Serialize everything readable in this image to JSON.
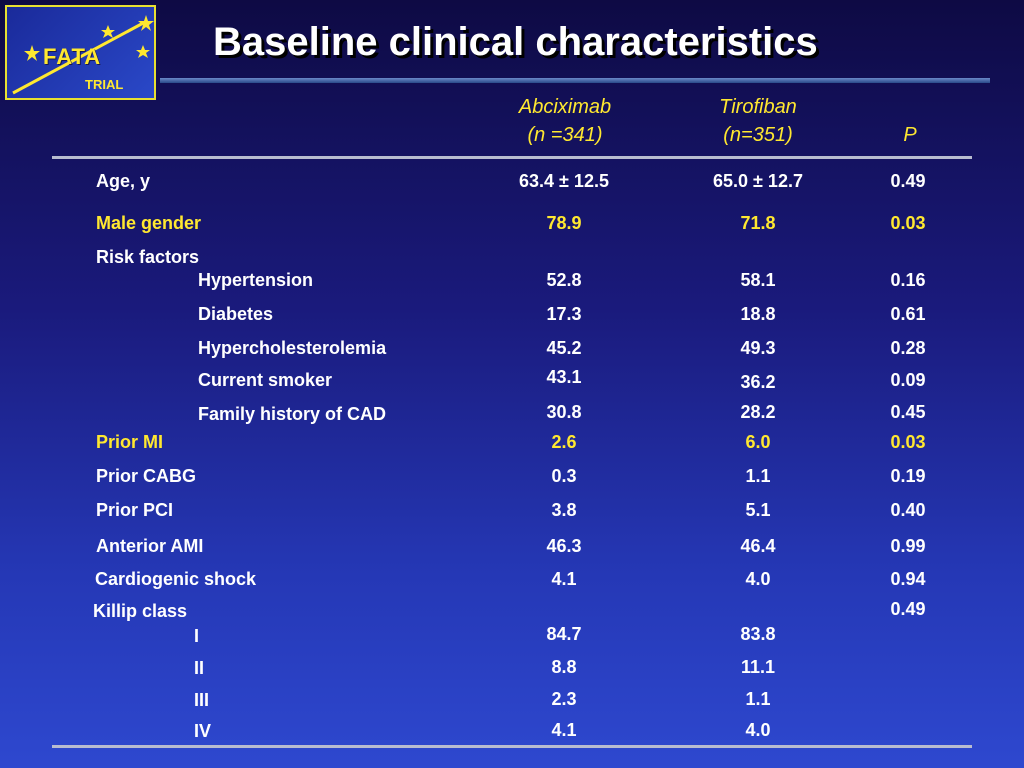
{
  "logo": {
    "name": "FATA",
    "sub": "TRIAL"
  },
  "title": "Baseline clinical characteristics",
  "header": {
    "group1": "Abciximab",
    "group1_n": "(n =341)",
    "group2": "Tirofiban",
    "group2_n": "(n=351)",
    "p": "P"
  },
  "colors": {
    "highlight": "#ffe830",
    "text": "#ffffff"
  },
  "rows": [
    {
      "label": "Age, y",
      "abciximab": "63.4  ± 12.5",
      "tirofiban": "65.0  ± 12.7",
      "p": "0.49"
    },
    {
      "label": "Male gender",
      "abciximab": "78.9",
      "tirofiban": "71.8",
      "p": "0.03",
      "highlight": true
    },
    {
      "label": "Risk factors"
    },
    {
      "label": "Hypertension",
      "abciximab": "52.8",
      "tirofiban": "58.1",
      "p": "0.16"
    },
    {
      "label": "Diabetes",
      "abciximab": "17.3",
      "tirofiban": "18.8",
      "p": "0.61"
    },
    {
      "label": "Hypercholesterolemia",
      "abciximab": "45.2",
      "tirofiban": "49.3",
      "p": "0.28"
    },
    {
      "label": "Current smoker",
      "abciximab": "43.1",
      "tirofiban": "36.2",
      "p": "0.09"
    },
    {
      "label": "Family history of CAD",
      "abciximab": "30.8",
      "tirofiban": "28.2",
      "p": "0.45"
    },
    {
      "label": "Prior MI",
      "abciximab": "2.6",
      "tirofiban": "6.0",
      "p": "0.03",
      "highlight": true
    },
    {
      "label": "Prior CABG",
      "abciximab": "0.3",
      "tirofiban": "1.1",
      "p": "0.19"
    },
    {
      "label": "Prior PCI",
      "abciximab": "3.8",
      "tirofiban": "5.1",
      "p": "0.40"
    },
    {
      "label": "Anterior AMI",
      "abciximab": "46.3",
      "tirofiban": "46.4",
      "p": "0.99"
    },
    {
      "label": "Cardiogenic shock",
      "abciximab": "4.1",
      "tirofiban": "4.0",
      "p": "0.94"
    },
    {
      "label": "Killip class",
      "p": "0.49"
    },
    {
      "label": "I",
      "abciximab": "84.7",
      "tirofiban": "83.8"
    },
    {
      "label": "II",
      "abciximab": "8.8",
      "tirofiban": "11.1"
    },
    {
      "label": "III",
      "abciximab": "2.3",
      "tirofiban": "1.1"
    },
    {
      "label": "IV",
      "abciximab": "4.1",
      "tirofiban": "4.0"
    }
  ]
}
